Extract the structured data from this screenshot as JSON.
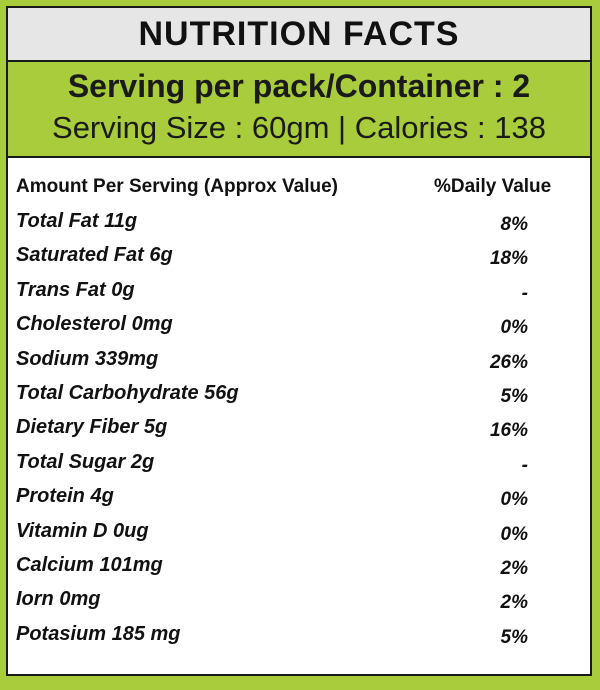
{
  "title": "NUTRITION FACTS",
  "serving": {
    "per_pack": "Serving per pack/Container : 2",
    "size_calories": "Serving Size :  60gm | Calories : 138"
  },
  "table": {
    "header_left": "Amount Per Serving (Approx Value)",
    "header_right": "%Daily Value",
    "rows": [
      {
        "nutrient": "Total Fat 11g",
        "dv": "8%"
      },
      {
        "nutrient": "Saturated Fat 6g",
        "dv": "18%"
      },
      {
        "nutrient": "Trans Fat 0g",
        "dv": "-"
      },
      {
        "nutrient": "Cholesterol 0mg",
        "dv": "0%"
      },
      {
        "nutrient": "Sodium 339mg",
        "dv": "26%"
      },
      {
        "nutrient": "Total Carbohydrate 56g",
        "dv": "5%"
      },
      {
        "nutrient": "Dietary Fiber 5g",
        "dv": "16%"
      },
      {
        "nutrient": "Total Sugar 2g",
        "dv": "-"
      },
      {
        "nutrient": "Protein 4g",
        "dv": "0%"
      },
      {
        "nutrient": "Vitamin D 0ug",
        "dv": "0%"
      },
      {
        "nutrient": "Calcium 101mg",
        "dv": "2%"
      },
      {
        "nutrient": "Iorn 0mg",
        "dv": "2%"
      },
      {
        "nutrient": "Potasium 185 mg",
        "dv": "5%"
      }
    ]
  },
  "colors": {
    "accent_green": "#a8cc3c",
    "title_bg": "#e6e6e6",
    "text": "#111111"
  }
}
